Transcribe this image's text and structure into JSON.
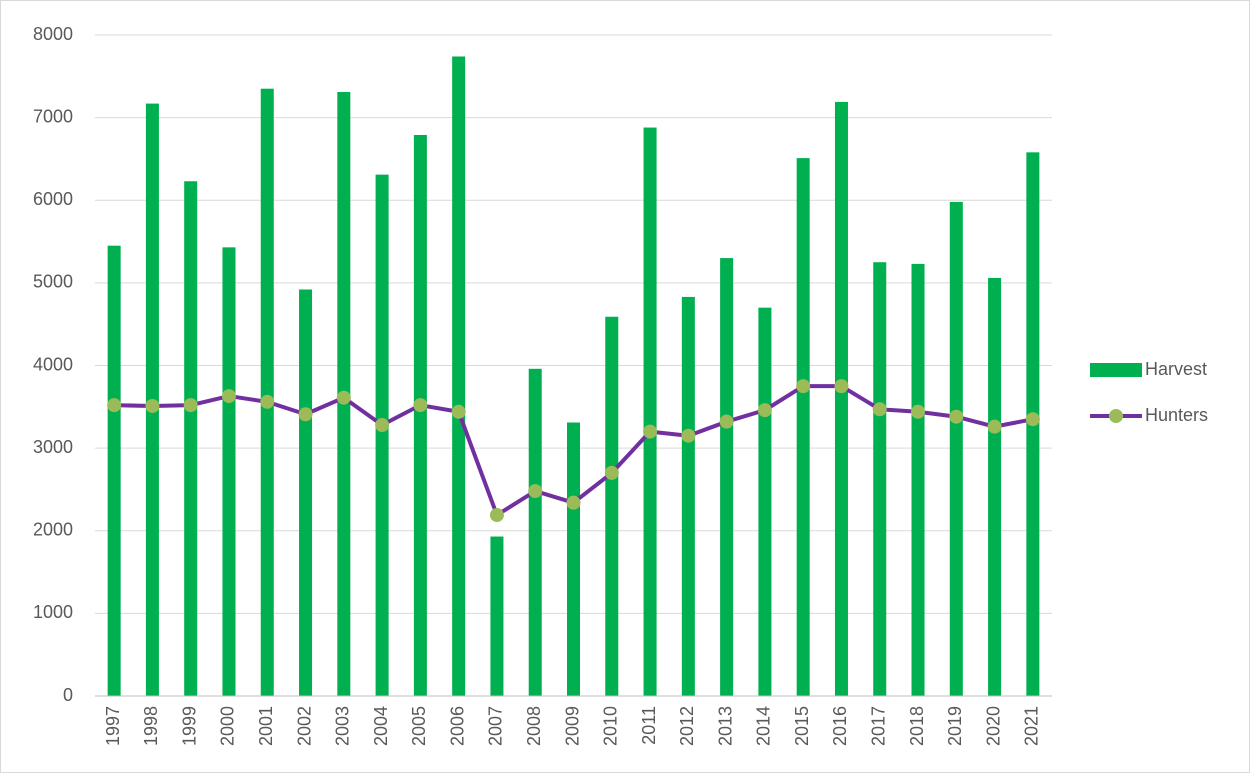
{
  "chart_data": {
    "type": "combo",
    "categories": [
      "1997",
      "1998",
      "1999",
      "2000",
      "2001",
      "2002",
      "2003",
      "2004",
      "2005",
      "2006",
      "2007",
      "2008",
      "2009",
      "2010",
      "2011",
      "2012",
      "2013",
      "2014",
      "2015",
      "2016",
      "2017",
      "2018",
      "2019",
      "2020",
      "2021"
    ],
    "series": [
      {
        "name": "Harvest",
        "type": "bar",
        "color": "#00b050",
        "values": [
          5450,
          7170,
          6230,
          5430,
          7350,
          4920,
          7310,
          6310,
          6790,
          7740,
          1930,
          3960,
          3310,
          4590,
          6880,
          4830,
          5300,
          4700,
          6510,
          7190,
          5250,
          5230,
          5980,
          5060,
          6580
        ]
      },
      {
        "name": "Hunters",
        "type": "line",
        "color": "#7030a0",
        "marker_color": "#9bbb59",
        "values": [
          3520,
          3510,
          3520,
          3630,
          3560,
          3410,
          3610,
          3280,
          3520,
          3440,
          2190,
          2480,
          2340,
          2700,
          3200,
          3150,
          3320,
          3460,
          3750,
          3750,
          3470,
          3440,
          3380,
          3260,
          3350
        ]
      }
    ],
    "ylim": [
      0,
      8000
    ],
    "yticks": [
      0,
      1000,
      2000,
      3000,
      4000,
      5000,
      6000,
      7000,
      8000
    ],
    "grid": true,
    "legend": "right"
  }
}
